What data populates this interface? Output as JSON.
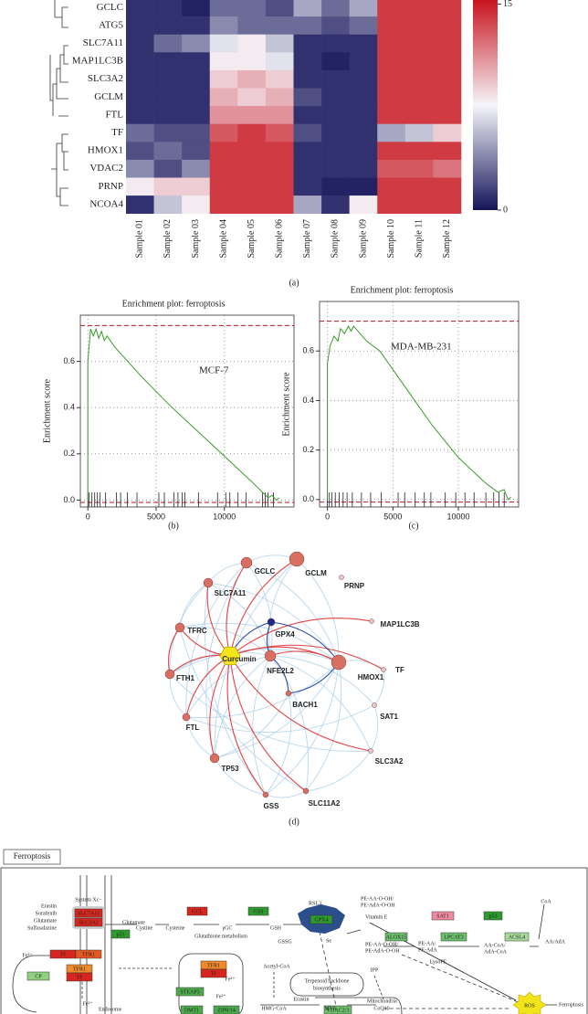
{
  "chart_data": [
    {
      "type": "heatmap",
      "rows": [
        "GCLC",
        "ATG5",
        "SLC7A11",
        "MAP1LC3B",
        "SLC3A2",
        "GCLM",
        "FTL",
        "TF",
        "HMOX1",
        "VDAC2",
        "PRNP",
        "NCOA4"
      ],
      "columns": [
        "Sample 01",
        "Sample 02",
        "Sample 03",
        "Sample 04",
        "Sample 05",
        "Sample 06",
        "Sample 07",
        "Sample 08",
        "Sample 09",
        "Sample 10",
        "Sample 11",
        "Sample 12"
      ],
      "values": [
        [
          1,
          1,
          0.5,
          3,
          3,
          2,
          5,
          3,
          5,
          14,
          14,
          14
        ],
        [
          1,
          1,
          1,
          4,
          3,
          3,
          3,
          2,
          3,
          14,
          14,
          14
        ],
        [
          1,
          3,
          4,
          7,
          8,
          6,
          1,
          1,
          1,
          14,
          14,
          14
        ],
        [
          1,
          1,
          1,
          8,
          8,
          7,
          1,
          0.5,
          1,
          14,
          14,
          14
        ],
        [
          1,
          1,
          1,
          9,
          10,
          9,
          1,
          1,
          1,
          14,
          14,
          14
        ],
        [
          1,
          1,
          1,
          10,
          9,
          10,
          2,
          1,
          1,
          14,
          14,
          14
        ],
        [
          1,
          1,
          1,
          11,
          11,
          11,
          1,
          1,
          1,
          14,
          14,
          14
        ],
        [
          3,
          2,
          2,
          13,
          14,
          13,
          2,
          1,
          1,
          5,
          6,
          9
        ],
        [
          2,
          3,
          2,
          14,
          14,
          14,
          1,
          1,
          1,
          14,
          14,
          14
        ],
        [
          4,
          2,
          4,
          14,
          14,
          14,
          1,
          1,
          1,
          13,
          13,
          12
        ],
        [
          8,
          9,
          9,
          14,
          14,
          14,
          1,
          0.5,
          0.5,
          14,
          14,
          14
        ],
        [
          1,
          6,
          8,
          14,
          14,
          14,
          5,
          1,
          8,
          14,
          14,
          14
        ]
      ],
      "zlim": [
        0,
        15.3
      ],
      "zticks": [
        0,
        15
      ],
      "colors": [
        "#14145a",
        "#f5f5fa",
        "#c8141e"
      ]
    },
    {
      "type": "gsea",
      "title": "Enrichment plot: ferroptosis",
      "ylabel": "Enrichment score",
      "annotation": "MCF-7",
      "x": [
        0,
        0,
        200,
        400,
        600,
        800,
        1000,
        1200,
        1400,
        2000,
        4000,
        6000,
        8000,
        10000,
        12000,
        13200,
        13500,
        13800,
        14000
      ],
      "y": [
        0,
        0.6,
        0.74,
        0.71,
        0.74,
        0.7,
        0.73,
        0.69,
        0.71,
        0.66,
        0.53,
        0.41,
        0.3,
        0.19,
        0.08,
        0.01,
        0.02,
        0,
        0.01
      ],
      "hits": [
        0,
        100,
        300,
        500,
        700,
        900,
        1300,
        2100,
        2400,
        2900,
        3600,
        5200,
        5600,
        6300,
        6600,
        6900,
        7100,
        8100,
        9500,
        10100,
        10400,
        11000,
        11600,
        12800,
        13000,
        13200,
        13600
      ],
      "reference_lines": [
        0.755,
        -0.01
      ],
      "color": "#3a9a2a",
      "reference_color": "#c0141c",
      "xlim": [
        -550,
        15100
      ],
      "ylim": [
        -0.03,
        0.8
      ],
      "xticks": [
        0,
        5000,
        10000
      ],
      "yticks": [
        {
          "value": 0,
          "label": "0.0"
        },
        0.2,
        0.4,
        0.6
      ],
      "grid": true
    },
    {
      "type": "gsea",
      "title": "Enrichment plot: ferroptosis",
      "ylabel": "Enrichment score",
      "annotation": "MDA-MB-231",
      "x": [
        0,
        0,
        200,
        500,
        800,
        1000,
        1300,
        1600,
        1800,
        2000,
        3000,
        4000,
        6000,
        8000,
        10000,
        12000,
        13000,
        13500,
        13800,
        14000
      ],
      "y": [
        0,
        0.55,
        0.62,
        0.66,
        0.64,
        0.69,
        0.67,
        0.7,
        0.68,
        0.7,
        0.64,
        0.6,
        0.45,
        0.3,
        0.17,
        0.07,
        0.03,
        0.04,
        0,
        0.01
      ],
      "hits": [
        0,
        150,
        350,
        600,
        900,
        1200,
        1500,
        1900,
        2600,
        3300,
        4100,
        5400,
        5900,
        6700,
        7400,
        7900,
        9000,
        9800,
        10500,
        11200,
        12100,
        12700,
        13100,
        13500
      ],
      "reference_lines": [
        0.72,
        -0.01
      ],
      "color": "#3a9a2a",
      "reference_color": "#c0141c",
      "xlim": [
        -600,
        14600
      ],
      "ylim": [
        -0.03,
        0.8
      ],
      "xticks": [
        0,
        5000,
        10000
      ],
      "yticks": [
        {
          "value": 0,
          "label": "0.0"
        },
        0.2,
        0.4,
        0.6
      ],
      "grid": true
    }
  ],
  "panel_labels": [
    "(a)",
    "(b)",
    "(c)",
    "(d)"
  ],
  "network": {
    "nodes": [
      "Curcumin",
      "GCLC",
      "GCLM",
      "PRNP",
      "SLC7A11",
      "MAP1LC3B",
      "TFRC",
      "GPX4",
      "NFE2L2",
      "HMOX1",
      "TF",
      "BACH1",
      "FTH1",
      "SAT1",
      "FTL",
      "SLC3A2",
      "TP53",
      "GSS",
      "SLC11A2"
    ],
    "edges": [
      {
        "color": "#a8cde8",
        "pairs": [
          [
            1,
            4
          ],
          [
            1,
            2
          ],
          [
            4,
            6
          ],
          [
            6,
            12
          ],
          [
            12,
            14
          ],
          [
            14,
            16
          ],
          [
            16,
            17
          ],
          [
            17,
            18
          ],
          [
            18,
            15
          ],
          [
            15,
            13
          ],
          [
            13,
            10
          ],
          [
            10,
            9
          ],
          [
            1,
            9
          ],
          [
            2,
            9
          ],
          [
            4,
            9
          ],
          [
            6,
            9
          ],
          [
            12,
            9
          ],
          [
            14,
            9
          ],
          [
            16,
            9
          ],
          [
            17,
            9
          ],
          [
            18,
            9
          ],
          [
            1,
            16
          ],
          [
            4,
            17
          ],
          [
            6,
            18
          ],
          [
            12,
            15
          ],
          [
            14,
            13
          ],
          [
            2,
            16
          ],
          [
            1,
            14
          ],
          [
            4,
            12
          ],
          [
            8,
            1
          ],
          [
            8,
            2
          ],
          [
            8,
            4
          ],
          [
            8,
            6
          ],
          [
            8,
            12
          ],
          [
            8,
            14
          ],
          [
            8,
            16
          ],
          [
            8,
            17
          ],
          [
            8,
            18
          ],
          [
            8,
            15
          ],
          [
            8,
            13
          ],
          [
            11,
            16
          ],
          [
            11,
            17
          ]
        ]
      },
      {
        "color": "#e03a3a",
        "pairs": [
          [
            0,
            1
          ],
          [
            0,
            2
          ],
          [
            0,
            4
          ],
          [
            0,
            5
          ],
          [
            0,
            6
          ],
          [
            0,
            9
          ],
          [
            0,
            10
          ],
          [
            0,
            12
          ],
          [
            0,
            14
          ],
          [
            0,
            15
          ],
          [
            0,
            16
          ],
          [
            0,
            17
          ],
          [
            0,
            18
          ],
          [
            8,
            9
          ],
          [
            6,
            12
          ]
        ]
      },
      {
        "color": "#1f3f9f",
        "pairs": [
          [
            7,
            8
          ],
          [
            7,
            9
          ],
          [
            8,
            11
          ],
          [
            11,
            9
          ],
          [
            0,
            7
          ]
        ]
      }
    ]
  },
  "pathway": {
    "title": "Ferroptosis",
    "boxes": [
      {
        "text": "SLC7A11",
        "color": "#d7261e"
      },
      {
        "text": "SLC3A2",
        "color": "#d7261e"
      },
      {
        "text": "GCL",
        "color": "#d7261e"
      },
      {
        "text": "GSS",
        "color": "#2e9b2e"
      },
      {
        "text": "p53",
        "color": "#2e9b2e"
      },
      {
        "text": "GPX4",
        "color": "#2e9b2e"
      },
      {
        "text": "ALOX15",
        "color": "#6cbf6c"
      },
      {
        "text": "SAT1",
        "color": "#ef8aa0"
      },
      {
        "text": "p53",
        "color": "#2e9b2e"
      },
      {
        "text": "LPCAT3",
        "color": "#6cbf6c"
      },
      {
        "text": "ACSL4",
        "color": "#a7d99a"
      },
      {
        "text": "TF",
        "color": "#d7261e"
      },
      {
        "text": "TFR1",
        "color": "#e4571e"
      },
      {
        "text": "TFR1",
        "color": "#ee8a2a"
      },
      {
        "text": "TF",
        "color": "#d7261e"
      },
      {
        "text": "CP",
        "color": "#8fcf7f"
      },
      {
        "text": "TFR1",
        "color": "#ee8a2a"
      },
      {
        "text": "TF",
        "color": "#d7261e"
      },
      {
        "text": "STEAP3",
        "color": "#4caa4c"
      },
      {
        "text": "DMT1",
        "color": "#4caa4c"
      },
      {
        "text": "ZIP8/14",
        "color": "#4caa4c"
      },
      {
        "text": "VDAC2/3",
        "color": "#6cbf6c"
      }
    ],
    "texts": [
      "System Xc−",
      "Erastin",
      "Sorafenib",
      "Glutamate",
      "Sulfasalazine",
      "Cystine",
      "Cysteine",
      "γGC",
      "Glutamate",
      "Glutathione metabolism",
      "GSH",
      "GSSG",
      "RSL3",
      "Se",
      "PE-AA-O-OH/",
      "PE-AdA-O-OH",
      "Vitamin E",
      "PE-AA-O-OH/",
      "PE-AdA-O-OH",
      "PE-AA/",
      "PE-AdA",
      "LysoPE",
      "AA-CoA/",
      "AdA-CoA",
      "CoA",
      "AA/AdA",
      "Fe³⁺",
      "Fe³⁺",
      "Fe²⁺",
      "Fe²⁺",
      "Endosome",
      "Acetyl-CoA",
      "Terpenoid backbone",
      "biosynthesis",
      "IPP",
      "HMG-CoA",
      "MVA",
      "CoQ10",
      "Erastin",
      "Mitochondria",
      "ROS",
      "Ferroptosis"
    ]
  }
}
